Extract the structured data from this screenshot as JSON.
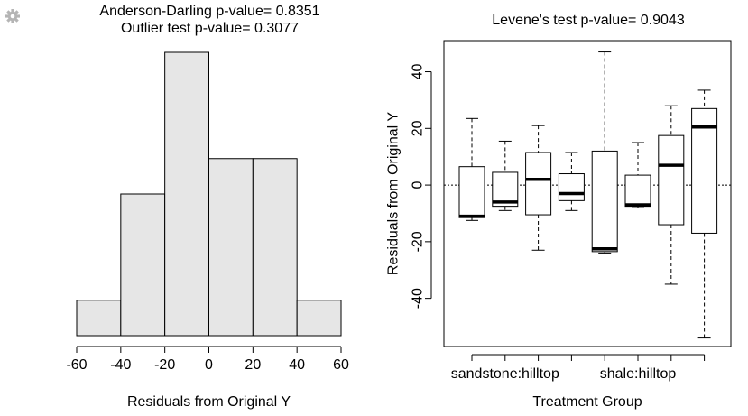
{
  "toolbar": {
    "icon": "gear-icon"
  },
  "chart_data": [
    {
      "type": "histogram",
      "title": [
        "Anderson-Darling p-value= 0.8351",
        "Outlier test p-value= 0.3077"
      ],
      "xlabel": "Residuals from Original Y",
      "ylabel": "",
      "bins": [
        {
          "from": -60,
          "to": -40,
          "count": 1
        },
        {
          "from": -40,
          "to": -20,
          "count": 4
        },
        {
          "from": -20,
          "to": 0,
          "count": 8
        },
        {
          "from": 0,
          "to": 20,
          "count": 5
        },
        {
          "from": 20,
          "to": 40,
          "count": 5
        },
        {
          "from": 40,
          "to": 60,
          "count": 1
        }
      ],
      "xlim": [
        -60,
        60
      ],
      "xticks": [
        "-60",
        "-40",
        "-20",
        "0",
        "20",
        "40",
        "60"
      ],
      "ylim": [
        0,
        8
      ],
      "bar_fill": "#e6e6e6",
      "grid": false
    },
    {
      "type": "boxplot",
      "title": "Levene's test p-value= 0.9043",
      "xlabel": "Treatment Group",
      "ylabel": "Residuals from Original Y",
      "ylim": [
        -57,
        51
      ],
      "yticks": [
        "40",
        "20",
        "0",
        "-20",
        "-40"
      ],
      "yticks_values": [
        40,
        20,
        0,
        -20,
        -40
      ],
      "xtick_labels": [
        "sandstone:hilltop",
        "",
        "shale:hilltop",
        ""
      ],
      "reference_line": 0,
      "groups": [
        {
          "whisker_low": -12.5,
          "q1": -11.5,
          "median": -11,
          "q3": 6.5,
          "whisker_high": 23.5
        },
        {
          "whisker_low": -9,
          "q1": -7.5,
          "median": -6,
          "q3": 4.5,
          "whisker_high": 15.5
        },
        {
          "whisker_low": -23,
          "q1": -10.5,
          "median": 2,
          "q3": 11.5,
          "whisker_high": 21
        },
        {
          "whisker_low": -9,
          "q1": -5.5,
          "median": -3,
          "q3": 4,
          "whisker_high": 11.5
        },
        {
          "whisker_low": -24,
          "q1": -23.5,
          "median": -22.5,
          "q3": 12,
          "whisker_high": 47
        },
        {
          "whisker_low": -8,
          "q1": -7.5,
          "median": -7,
          "q3": 3.5,
          "whisker_high": 15
        },
        {
          "whisker_low": -35,
          "q1": -14,
          "median": 7,
          "q3": 17.5,
          "whisker_high": 28
        },
        {
          "whisker_low": -54,
          "q1": -17,
          "median": 20.5,
          "q3": 27,
          "whisker_high": 33.5
        }
      ],
      "grid": false
    }
  ]
}
